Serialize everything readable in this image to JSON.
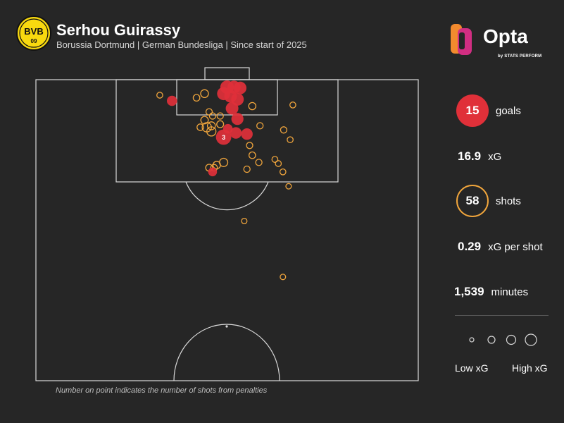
{
  "header": {
    "title": "Serhou Guirassy",
    "subtitle": "Borussia Dortmund | German Bundesliga | Since start of 2025",
    "crest_top": "BVB",
    "crest_bottom": "09"
  },
  "brand": {
    "name": "Opta",
    "tagline": "by STATS PERFORM",
    "colors": {
      "orange": "#f28a2e",
      "pink": "#d12e82",
      "purple": "#7a2b9b"
    }
  },
  "stats": {
    "goals_value": "15",
    "goals_label": "goals",
    "xg_value": "16.9",
    "xg_label": "xG",
    "shots_value": "58",
    "shots_label": "shots",
    "xg_per_shot_value": "0.29",
    "xg_per_shot_label": "xG per shot",
    "minutes_value": "1,539",
    "minutes_label": "minutes"
  },
  "legend": {
    "low_label": "Low xG",
    "high_label": "High xG"
  },
  "footnote": "Number on point indicates the number of shots from penalties",
  "colors": {
    "goal": "#e03039",
    "shot": "#f0a53c",
    "background": "#262626",
    "pitch_lines": "#d9d9d9"
  },
  "chart_data": {
    "type": "scatter",
    "description_units": "x: 0-100 across pitch width (left to right); y: metres from goal line",
    "series": [
      {
        "name": "goals",
        "points": [
          {
            "x": 50.0,
            "y": 2.0,
            "xg": 0.55
          },
          {
            "x": 51.8,
            "y": 2.0,
            "xg": 0.5
          },
          {
            "x": 53.4,
            "y": 2.2,
            "xg": 0.45
          },
          {
            "x": 49.1,
            "y": 3.7,
            "xg": 0.5
          },
          {
            "x": 50.9,
            "y": 4.4,
            "xg": 0.45
          },
          {
            "x": 52.7,
            "y": 5.2,
            "xg": 0.45
          },
          {
            "x": 35.6,
            "y": 5.6,
            "xg": 0.25
          },
          {
            "x": 51.3,
            "y": 7.6,
            "xg": 0.45
          },
          {
            "x": 52.7,
            "y": 10.4,
            "xg": 0.4
          },
          {
            "x": 50.2,
            "y": 13.0,
            "xg": 0.2
          },
          {
            "x": 52.3,
            "y": 14.1,
            "xg": 0.35
          },
          {
            "x": 55.2,
            "y": 14.4,
            "xg": 0.35
          },
          {
            "x": 49.1,
            "y": 15.2,
            "xg": 0.76,
            "penalties": 3
          },
          {
            "x": 46.2,
            "y": 24.4,
            "xg": 0.15
          }
        ]
      },
      {
        "name": "shots",
        "points": [
          {
            "x": 32.4,
            "y": 4.1,
            "xg": 0.03
          },
          {
            "x": 42.0,
            "y": 4.8,
            "xg": 0.05
          },
          {
            "x": 44.1,
            "y": 3.7,
            "xg": 0.1
          },
          {
            "x": 56.6,
            "y": 7.0,
            "xg": 0.07
          },
          {
            "x": 67.2,
            "y": 6.7,
            "xg": 0.03
          },
          {
            "x": 45.3,
            "y": 8.5,
            "xg": 0.04
          },
          {
            "x": 46.2,
            "y": 9.6,
            "xg": 0.04
          },
          {
            "x": 48.2,
            "y": 9.6,
            "xg": 0.04
          },
          {
            "x": 44.1,
            "y": 10.7,
            "xg": 0.08
          },
          {
            "x": 48.2,
            "y": 11.8,
            "xg": 0.06
          },
          {
            "x": 43.0,
            "y": 12.6,
            "xg": 0.05
          },
          {
            "x": 44.7,
            "y": 12.6,
            "xg": 0.18
          },
          {
            "x": 45.9,
            "y": 12.2,
            "xg": 0.1
          },
          {
            "x": 58.6,
            "y": 12.2,
            "xg": 0.04
          },
          {
            "x": 64.8,
            "y": 13.3,
            "xg": 0.04
          },
          {
            "x": 45.9,
            "y": 13.7,
            "xg": 0.17
          },
          {
            "x": 55.9,
            "y": 17.4,
            "xg": 0.04
          },
          {
            "x": 66.5,
            "y": 15.9,
            "xg": 0.03
          },
          {
            "x": 56.6,
            "y": 20.0,
            "xg": 0.05
          },
          {
            "x": 58.3,
            "y": 21.9,
            "xg": 0.04
          },
          {
            "x": 62.5,
            "y": 21.1,
            "xg": 0.03
          },
          {
            "x": 63.4,
            "y": 22.2,
            "xg": 0.03
          },
          {
            "x": 49.1,
            "y": 21.9,
            "xg": 0.12
          },
          {
            "x": 47.3,
            "y": 22.6,
            "xg": 0.08
          },
          {
            "x": 46.6,
            "y": 23.3,
            "xg": 0.05
          },
          {
            "x": 45.3,
            "y": 23.3,
            "xg": 0.06
          },
          {
            "x": 55.2,
            "y": 23.7,
            "xg": 0.04
          },
          {
            "x": 64.6,
            "y": 24.4,
            "xg": 0.03
          },
          {
            "x": 66.1,
            "y": 28.2,
            "xg": 0.02
          },
          {
            "x": 54.5,
            "y": 37.4,
            "xg": 0.02
          },
          {
            "x": 64.6,
            "y": 52.2,
            "xg": 0.02
          }
        ]
      }
    ]
  }
}
